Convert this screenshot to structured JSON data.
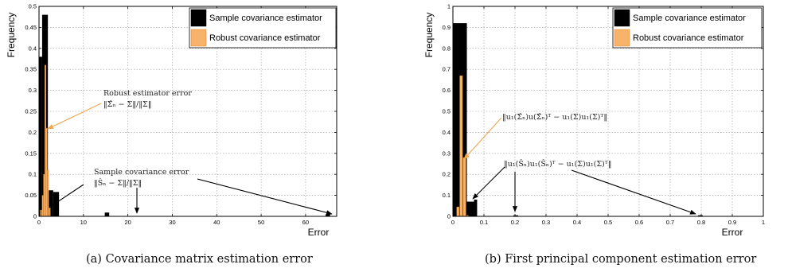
{
  "captions": {
    "a": "(a) Covariance matrix estimation error",
    "b": "(b) First principal component estimation error"
  },
  "colors": {
    "sample": "#000000",
    "robust": "#f7b26b",
    "robust_edge": "#d9801e",
    "grid": "#9a9a9a",
    "sample_arrow": "#000000",
    "robust_arrow": "#f0a64f"
  },
  "chart_data": [
    {
      "type": "bar",
      "xlabel": "Error",
      "ylabel": "Frequency",
      "xlim": [
        0,
        67
      ],
      "ylim": [
        0,
        0.5
      ],
      "xticks": [
        0,
        10,
        20,
        30,
        40,
        50,
        60
      ],
      "yticks": [
        0,
        0.05,
        0.1,
        0.15,
        0.2,
        0.25,
        0.3,
        0.35,
        0.4,
        0.45,
        0.5
      ],
      "grid": true,
      "legend_position": "top-right",
      "series": [
        {
          "name": "Sample covariance estimator",
          "bins": [
            {
              "x0": 0.0,
              "x1": 0.7,
              "y": 0.38
            },
            {
              "x0": 0.7,
              "x1": 2.0,
              "y": 0.48
            },
            {
              "x0": 2.0,
              "x1": 3.2,
              "y": 0.062
            },
            {
              "x0": 3.2,
              "x1": 4.5,
              "y": 0.058
            },
            {
              "x0": 14.8,
              "x1": 15.8,
              "y": 0.009
            },
            {
              "x0": 64.5,
              "x1": 65.5,
              "y": 0.005
            }
          ]
        },
        {
          "name": "Robust covariance estimator",
          "bins": [
            {
              "x0": 0.3,
              "x1": 0.5,
              "y": 0.015
            },
            {
              "x0": 0.7,
              "x1": 0.9,
              "y": 0.05
            },
            {
              "x0": 1.0,
              "x1": 1.2,
              "y": 0.1
            },
            {
              "x0": 1.3,
              "x1": 1.5,
              "y": 0.36
            },
            {
              "x0": 1.6,
              "x1": 1.8,
              "y": 0.21
            },
            {
              "x0": 1.9,
              "x1": 2.1,
              "y": 0.11
            },
            {
              "x0": 2.3,
              "x1": 2.5,
              "y": 0.02
            }
          ]
        }
      ],
      "annotations": [
        {
          "line1": "Robust estimator error",
          "line2": "‖Σ̂ₙ − Σ‖/‖Σ‖",
          "style": "robust"
        },
        {
          "line1": "Sample covariance error",
          "line2": "‖Ŝₙ − Σ‖/‖Σ‖",
          "style": "sample"
        }
      ]
    },
    {
      "type": "bar",
      "xlabel": "Error",
      "ylabel": "Frequency",
      "xlim": [
        0,
        1
      ],
      "ylim": [
        0,
        1
      ],
      "xticks": [
        0,
        0.1,
        0.2,
        0.3,
        0.4,
        0.5,
        0.6,
        0.7,
        0.8,
        0.9,
        1
      ],
      "yticks": [
        0,
        0.1,
        0.2,
        0.3,
        0.4,
        0.5,
        0.6,
        0.7,
        0.8,
        0.9,
        1
      ],
      "grid": true,
      "legend_position": "top-right",
      "series": [
        {
          "name": "Sample covariance estimator",
          "bins": [
            {
              "x0": 0.0,
              "x1": 0.045,
              "y": 0.92
            },
            {
              "x0": 0.045,
              "x1": 0.068,
              "y": 0.07
            },
            {
              "x0": 0.068,
              "x1": 0.078,
              "y": 0.08
            },
            {
              "x0": 0.195,
              "x1": 0.21,
              "y": 0.005
            },
            {
              "x0": 0.79,
              "x1": 0.805,
              "y": 0.005
            }
          ]
        },
        {
          "name": "Robust covariance estimator",
          "bins": [
            {
              "x0": 0.012,
              "x1": 0.02,
              "y": 0.045
            },
            {
              "x0": 0.022,
              "x1": 0.031,
              "y": 0.67
            },
            {
              "x0": 0.033,
              "x1": 0.042,
              "y": 0.28
            },
            {
              "x0": 0.044,
              "x1": 0.05,
              "y": 0.005
            }
          ]
        }
      ],
      "annotations": [
        {
          "line1": "‖u₁(Σ̂ₙ)u(Σ̂ₙ)ᵀ − u₁(Σ)u₁(Σ)ᵀ‖",
          "style": "robust"
        },
        {
          "line1": "‖u₁(Ŝₙ)u₁(Ŝₙ)ᵀ − u₁(Σ)u₁(Σ)ᵀ‖",
          "style": "sample"
        }
      ]
    }
  ]
}
